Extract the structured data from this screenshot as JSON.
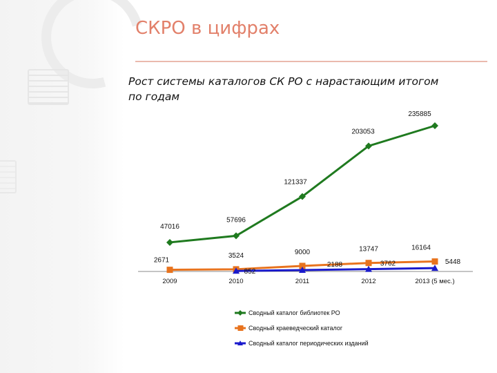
{
  "slide": {
    "title": "СКРО в цифрах",
    "subtitle_line1": "Рост системы каталогов СК РО с нарастающим итогом",
    "subtitle_line2": "по годам"
  },
  "chart_data": {
    "type": "line",
    "title": "",
    "xlabel": "",
    "ylabel": "",
    "categories": [
      "2009",
      "2010",
      "2011",
      "2012",
      "2013 (5 мес.)"
    ],
    "ylim": [
      0,
      240000
    ],
    "grid": false,
    "legend_position": "bottom",
    "series": [
      {
        "name": "Сводный каталог библиотек РО",
        "color": "#1f7a1f",
        "marker": "diamond",
        "values": [
          47016,
          57696,
          121337,
          203053,
          235885
        ]
      },
      {
        "name": "Сводный краеведческий каталог",
        "color": "#e8731e",
        "marker": "square",
        "values": [
          2671,
          3524,
          9000,
          13747,
          16164
        ]
      },
      {
        "name": "Сводный каталог периодических изданий",
        "color": "#1a1acc",
        "marker": "triangle",
        "values": [
          null,
          852,
          2188,
          3762,
          5448
        ]
      }
    ]
  }
}
